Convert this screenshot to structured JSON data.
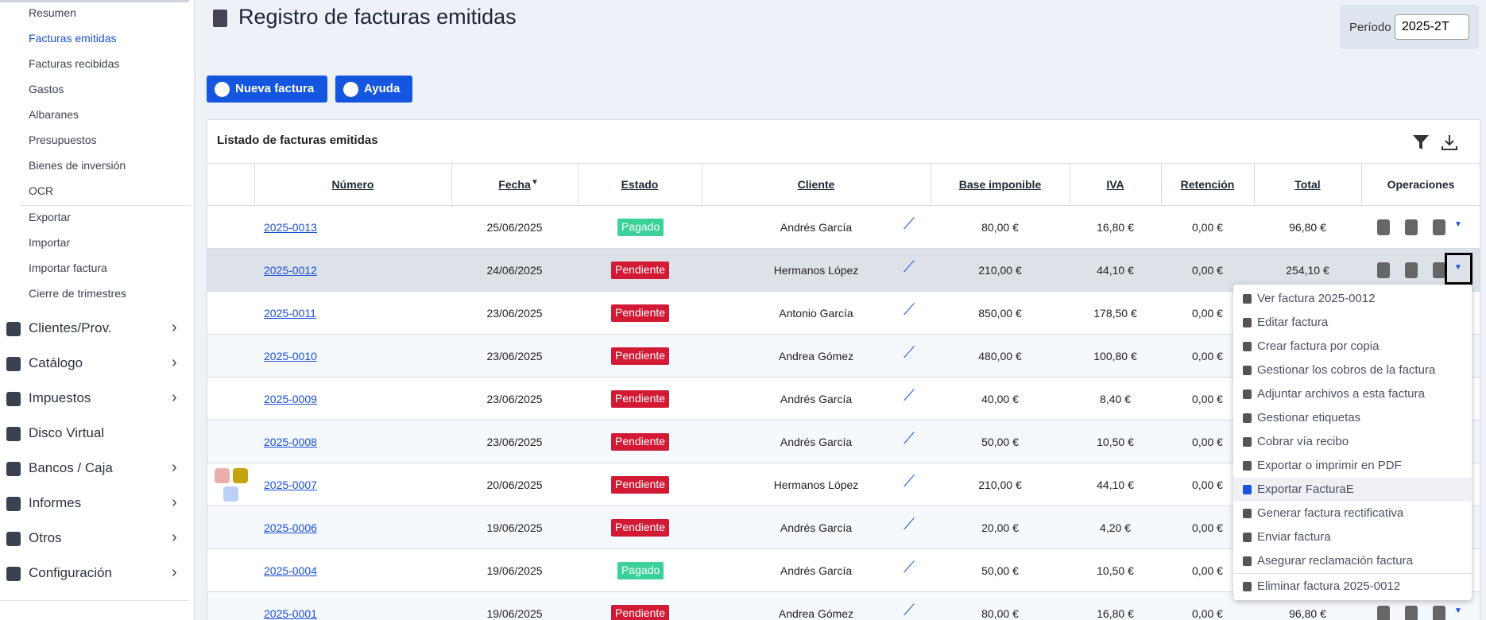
{
  "sidebar": {
    "items": [
      "Resumen",
      "Facturas emitidas",
      "Facturas recibidas",
      "Gastos",
      "Albaranes",
      "Presupuestos",
      "Bienes de inversión",
      "OCR",
      "Exportar",
      "Importar",
      "Importar factura",
      "Cierre de trimestres"
    ],
    "sections": [
      "Clientes/Prov.",
      "Catálogo",
      "Impuestos",
      "Disco Virtual",
      "Bancos / Caja",
      "Informes",
      "Otros",
      "Configuración"
    ]
  },
  "header": {
    "title": "Registro de facturas emitidas",
    "period_label": "Período",
    "period_value": "2025-2T"
  },
  "buttons": [
    "Nueva factura",
    "Ayuda"
  ],
  "table": {
    "title": "Listado de facturas emitidas",
    "columns": [
      "Número",
      "Fecha",
      "Estado",
      "Cliente",
      "Base imponible",
      "IVA",
      "Retención",
      "Total",
      "Operaciones"
    ],
    "rows": [
      [
        "2025-0013",
        "25/06/2025",
        "Pagado",
        "Andrés García",
        "80,00 €",
        "16,80 €",
        "0,00 €",
        "96,80 €"
      ],
      [
        "2025-0012",
        "24/06/2025",
        "Pendiente",
        "Hermanos López",
        "210,00 €",
        "44,10 €",
        "0,00 €",
        "254,10 €"
      ],
      [
        "2025-0011",
        "23/06/2025",
        "Pendiente",
        "Antonio García",
        "850,00 €",
        "178,50 €",
        "0,00 €",
        null
      ],
      [
        "2025-0010",
        "23/06/2025",
        "Pendiente",
        "Andrea Gómez",
        "480,00 €",
        "100,80 €",
        "0,00 €",
        null
      ],
      [
        "2025-0009",
        "23/06/2025",
        "Pendiente",
        "Andrés García",
        "40,00 €",
        "8,40 €",
        "0,00 €",
        null
      ],
      [
        "2025-0008",
        "23/06/2025",
        "Pendiente",
        "Andrés García",
        "50,00 €",
        "10,50 €",
        "0,00 €",
        null
      ],
      [
        "2025-0007",
        "20/06/2025",
        "Pendiente",
        "Hermanos López",
        "210,00 €",
        "44,10 €",
        "0,00 €",
        null
      ],
      [
        "2025-0006",
        "19/06/2025",
        "Pendiente",
        "Andrés García",
        "20,00 €",
        "4,20 €",
        "0,00 €",
        null
      ],
      [
        "2025-0004",
        "19/06/2025",
        "Pagado",
        "Andrés García",
        "50,00 €",
        "10,50 €",
        "0,00 €",
        null
      ],
      [
        "2025-0001",
        "19/06/2025",
        "Pendiente",
        "Andrea Gómez",
        "80,00 €",
        "16,80 €",
        "0,00 €",
        "96,80 €"
      ]
    ]
  },
  "menu": [
    "Ver factura 2025-0012",
    "Editar factura",
    "Crear factura por copia",
    "Gestionar los cobros de la factura",
    "Adjuntar archivos a esta factura",
    "Gestionar etiquetas",
    "Cobrar vía recibo",
    "Exportar o imprimir en PDF",
    "Exportar FacturaE",
    "Generar factura rectificativa",
    "Enviar factura",
    "Asegurar reclamación factura",
    "Eliminar factura 2025-0012"
  ]
}
